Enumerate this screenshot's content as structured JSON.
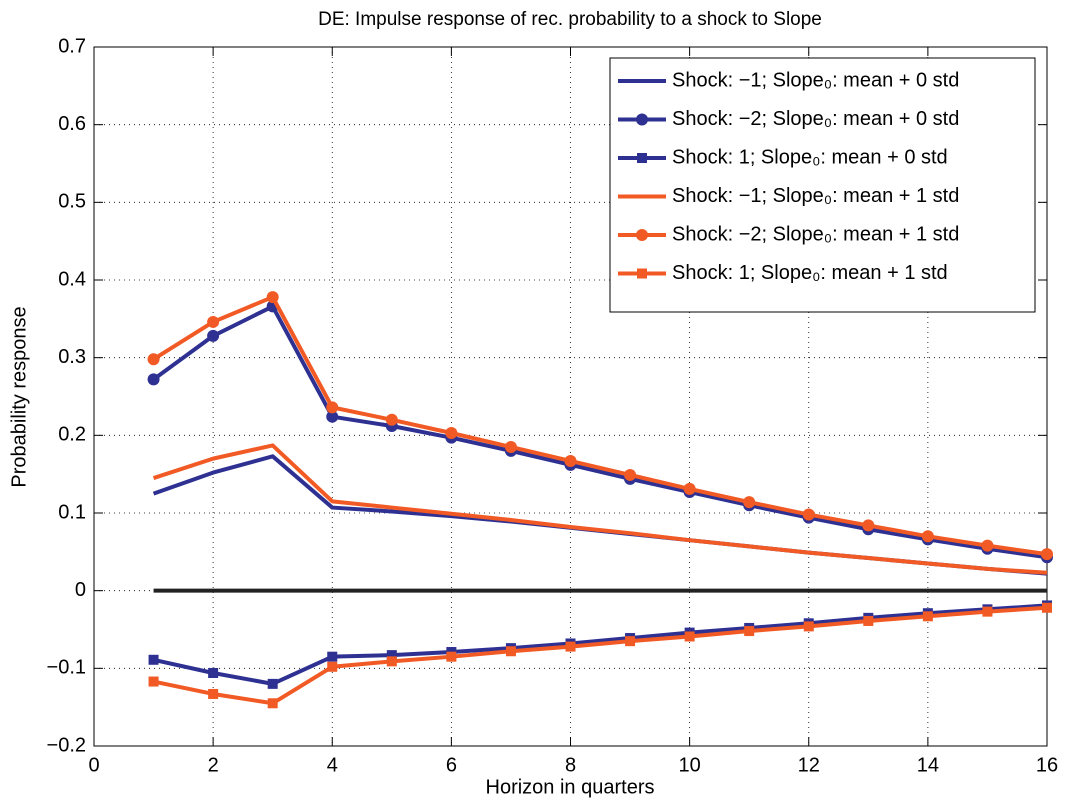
{
  "chart_data": {
    "type": "line",
    "title": "DE: Impulse response of rec. probability to a shock to Slope",
    "xlabel": "Horizon in quarters",
    "ylabel": "Probability response",
    "x": [
      1,
      2,
      3,
      4,
      5,
      6,
      7,
      8,
      9,
      10,
      11,
      12,
      13,
      14,
      15,
      16
    ],
    "series": [
      {
        "name": "Shock: −1; Slope₀: mean + 0 std",
        "color": "#2e3192",
        "marker": "none",
        "values": [
          0.125,
          0.152,
          0.173,
          0.107,
          0.102,
          0.096,
          0.089,
          0.081,
          0.073,
          0.065,
          0.057,
          0.049,
          0.042,
          0.035,
          0.028,
          0.022
        ]
      },
      {
        "name": "Shock: −2; Slope₀: mean + 0 std",
        "color": "#2e3192",
        "marker": "circle",
        "values": [
          0.272,
          0.328,
          0.366,
          0.224,
          0.212,
          0.197,
          0.18,
          0.162,
          0.144,
          0.127,
          0.11,
          0.094,
          0.079,
          0.066,
          0.054,
          0.043
        ]
      },
      {
        "name": "Shock: 1; Slope₀: mean + 0 std",
        "color": "#2e3192",
        "marker": "square",
        "values": [
          -0.089,
          -0.106,
          -0.12,
          -0.085,
          -0.083,
          -0.079,
          -0.074,
          -0.068,
          -0.061,
          -0.054,
          -0.048,
          -0.042,
          -0.035,
          -0.029,
          -0.024,
          -0.019
        ]
      },
      {
        "name": "Shock: −1; Slope₀: mean + 1 std",
        "color": "#f15a24",
        "marker": "none",
        "values": [
          0.145,
          0.17,
          0.187,
          0.115,
          0.107,
          0.099,
          0.091,
          0.082,
          0.074,
          0.065,
          0.057,
          0.049,
          0.042,
          0.035,
          0.028,
          0.023
        ]
      },
      {
        "name": "Shock: −2; Slope₀: mean + 1 std",
        "color": "#f15a24",
        "marker": "circle",
        "values": [
          0.298,
          0.346,
          0.378,
          0.236,
          0.22,
          0.203,
          0.185,
          0.167,
          0.149,
          0.131,
          0.114,
          0.098,
          0.084,
          0.07,
          0.058,
          0.047
        ]
      },
      {
        "name": "Shock: 1; Slope₀: mean + 1 std",
        "color": "#f15a24",
        "marker": "square",
        "values": [
          -0.117,
          -0.133,
          -0.145,
          -0.098,
          -0.091,
          -0.085,
          -0.078,
          -0.072,
          -0.065,
          -0.059,
          -0.052,
          -0.046,
          -0.039,
          -0.033,
          -0.027,
          -0.022
        ]
      }
    ],
    "xlim": [
      0,
      16
    ],
    "xticks": [
      0,
      2,
      4,
      6,
      8,
      10,
      12,
      14,
      16
    ],
    "ylim": [
      -0.2,
      0.7
    ],
    "yticks": [
      {
        "value": -0.2,
        "label": "−0.2"
      },
      {
        "value": -0.1,
        "label": "−0.1"
      },
      0,
      0.1,
      0.2,
      0.3,
      0.4,
      0.5,
      0.6,
      0.7
    ],
    "grid": true,
    "legend": "upper right"
  }
}
